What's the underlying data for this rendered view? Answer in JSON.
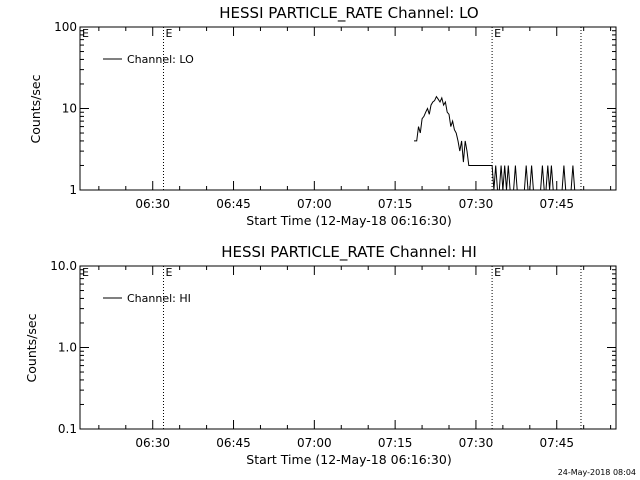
{
  "footer_timestamp": "24-May-2018 08:04",
  "chart_data": [
    {
      "type": "line",
      "title": "HESSI PARTICLE_RATE Channel: LO",
      "xlabel": "Start Time (12-May-18 06:16:30)",
      "ylabel": "Counts/sec",
      "yscale": "log",
      "ylim": [
        1,
        100
      ],
      "xlim": [
        "06:16:30",
        "07:56:00"
      ],
      "x_ticks": [
        "06:30",
        "06:45",
        "07:00",
        "07:15",
        "07:30",
        "07:45"
      ],
      "y_ticks": [
        "1",
        "10",
        "100"
      ],
      "grid": false,
      "legend": {
        "position": "top-left",
        "entries": [
          "Channel: LO"
        ]
      },
      "markers": [
        {
          "time": "06:32:00",
          "label": "E"
        },
        {
          "time": "07:33:00",
          "label": "E"
        },
        {
          "time": "07:49:30",
          "label": ""
        }
      ],
      "series": [
        {
          "name": "Channel: LO",
          "points": [
            [
              "07:18:30",
              4.0
            ],
            [
              "07:19:00",
              4.0
            ],
            [
              "07:19:20",
              6.0
            ],
            [
              "07:19:40",
              5.0
            ],
            [
              "07:20:00",
              7.5
            ],
            [
              "07:20:20",
              8.0
            ],
            [
              "07:20:40",
              9.0
            ],
            [
              "07:21:00",
              10.0
            ],
            [
              "07:21:20",
              8.5
            ],
            [
              "07:21:40",
              11.0
            ],
            [
              "07:22:00",
              12.0
            ],
            [
              "07:22:20",
              12.5
            ],
            [
              "07:22:40",
              14.0
            ],
            [
              "07:23:00",
              13.0
            ],
            [
              "07:23:20",
              12.0
            ],
            [
              "07:23:40",
              13.5
            ],
            [
              "07:24:00",
              11.0
            ],
            [
              "07:24:20",
              12.0
            ],
            [
              "07:24:40",
              9.0
            ],
            [
              "07:25:00",
              8.5
            ],
            [
              "07:25:20",
              6.0
            ],
            [
              "07:25:40",
              7.0
            ],
            [
              "07:26:00",
              5.5
            ],
            [
              "07:26:20",
              5.0
            ],
            [
              "07:26:40",
              4.0
            ],
            [
              "07:27:00",
              3.0
            ],
            [
              "07:27:20",
              4.0
            ],
            [
              "07:27:40",
              2.2
            ],
            [
              "07:28:00",
              4.0
            ],
            [
              "07:28:20",
              3.0
            ],
            [
              "07:28:40",
              2.0
            ],
            [
              "07:29:00",
              2.0
            ],
            [
              "07:30:00",
              2.0
            ],
            [
              "07:31:00",
              2.0
            ],
            [
              "07:32:00",
              2.0
            ],
            [
              "07:33:00",
              2.0
            ],
            [
              "07:33:20",
              1.0
            ],
            [
              "07:33:40",
              2.0
            ],
            [
              "07:34:00",
              1.0
            ],
            [
              "07:34:20",
              1.0
            ],
            [
              "07:34:40",
              2.0
            ],
            [
              "07:35:00",
              1.0
            ],
            [
              "07:35:20",
              2.0
            ],
            [
              "07:35:40",
              1.0
            ],
            [
              "07:36:00",
              2.0
            ],
            [
              "07:36:20",
              1.0
            ],
            [
              "07:37:00",
              1.0
            ],
            [
              "07:37:20",
              2.0
            ],
            [
              "07:37:40",
              1.0
            ],
            [
              "07:38:00",
              1.0
            ],
            [
              "07:39:00",
              1.0
            ],
            [
              "07:39:20",
              2.0
            ],
            [
              "07:39:40",
              1.0
            ],
            [
              "07:40:00",
              1.0
            ],
            [
              "07:40:20",
              2.0
            ],
            [
              "07:40:40",
              1.0
            ],
            [
              "07:41:00",
              1.0
            ],
            [
              "07:42:00",
              1.0
            ],
            [
              "07:42:20",
              2.0
            ],
            [
              "07:42:40",
              1.0
            ],
            [
              "07:43:00",
              1.0
            ],
            [
              "07:43:20",
              2.0
            ],
            [
              "07:43:40",
              1.0
            ],
            [
              "07:44:00",
              2.0
            ],
            [
              "07:44:20",
              1.0
            ],
            [
              "07:45:00",
              1.0
            ],
            [
              "07:46:00",
              1.0
            ],
            [
              "07:46:20",
              2.0
            ],
            [
              "07:46:40",
              1.0
            ],
            [
              "07:47:40",
              1.0
            ],
            [
              "07:48:00",
              2.0
            ],
            [
              "07:48:20",
              1.0
            ],
            [
              "07:48:40",
              1.0
            ]
          ]
        }
      ]
    },
    {
      "type": "line",
      "title": "HESSI PARTICLE_RATE Channel: HI",
      "xlabel": "Start Time (12-May-18 06:16:30)",
      "ylabel": "Counts/sec",
      "yscale": "log",
      "ylim": [
        0.1,
        10
      ],
      "xlim": [
        "06:16:30",
        "07:56:00"
      ],
      "x_ticks": [
        "06:30",
        "06:45",
        "07:00",
        "07:15",
        "07:30",
        "07:45"
      ],
      "y_ticks": [
        "0.1",
        "1.0",
        "10.0"
      ],
      "grid": false,
      "legend": {
        "position": "top-left",
        "entries": [
          "Channel: HI"
        ]
      },
      "markers": [
        {
          "time": "06:32:00",
          "label": "E"
        },
        {
          "time": "07:33:00",
          "label": "E"
        },
        {
          "time": "07:49:30",
          "label": ""
        }
      ],
      "series": [
        {
          "name": "Channel: HI",
          "points": []
        }
      ]
    }
  ]
}
